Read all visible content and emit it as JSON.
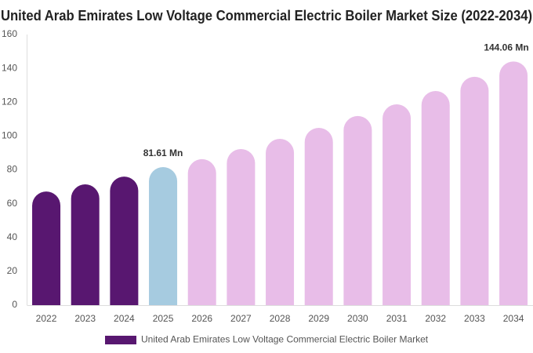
{
  "chart_data": {
    "type": "bar",
    "title": "United Arab Emirates Low Voltage Commercial Electric Boiler Market Size (2022-2034)",
    "categories": [
      "2022",
      "2023",
      "2024",
      "2025",
      "2026",
      "2027",
      "2028",
      "2029",
      "2030",
      "2031",
      "2032",
      "2033",
      "2034"
    ],
    "series": [
      {
        "name": "United Arab Emirates Low Voltage Commercial Electric Boiler Market",
        "color": "#581770",
        "values": [
          67.2,
          71.4,
          76.0,
          81.61,
          86.3,
          92.3,
          98.3,
          104.8,
          111.8,
          118.7,
          126.6,
          135.0,
          144.06
        ],
        "value_labels": [
          null,
          null,
          null,
          "81.61 Mn",
          null,
          null,
          null,
          null,
          null,
          null,
          null,
          null,
          "144.06 Mn"
        ],
        "colors": [
          "#581770",
          "#581770",
          "#581770",
          "#a6cbe0",
          "#e8bde8",
          "#e8bde8",
          "#e8bde8",
          "#e8bde8",
          "#e8bde8",
          "#e8bde8",
          "#e8bde8",
          "#e8bde8",
          "#e8bde8"
        ]
      }
    ],
    "ylim": [
      0,
      160
    ],
    "yticks": [
      0,
      20,
      40,
      60,
      80,
      100,
      120,
      140,
      160
    ],
    "grid": false
  }
}
